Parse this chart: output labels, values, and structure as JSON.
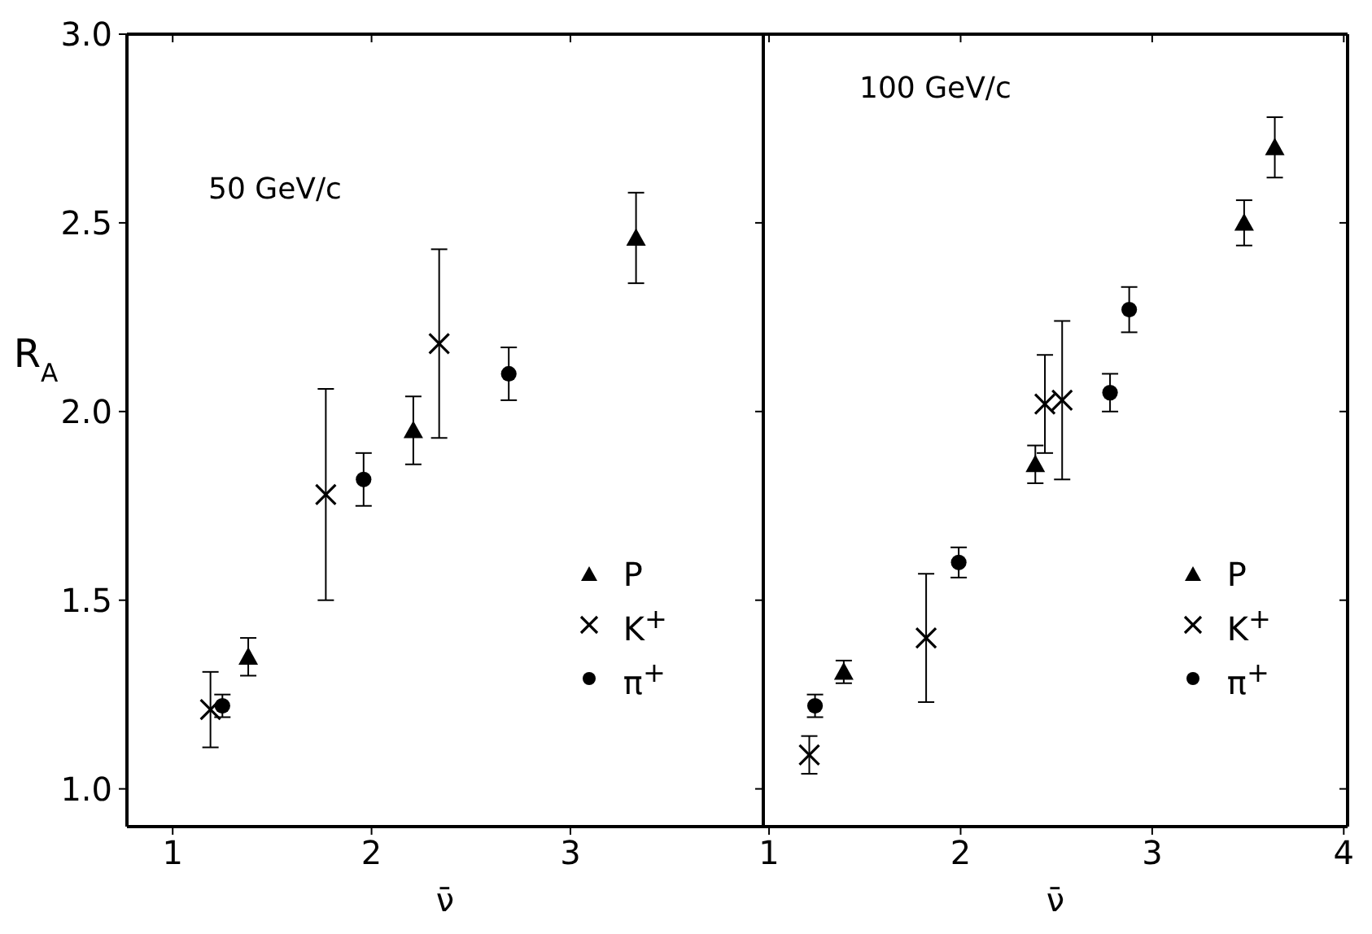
{
  "chart_data": [
    {
      "type": "scatter",
      "annotations": [
        "50 GeV/c"
      ],
      "xlabel": "ν̄",
      "ylabel": "R$_{A}$",
      "xlim": [
        0.77,
        3.97
      ],
      "xticks": [
        1,
        2,
        3
      ],
      "ylim": [
        0.9,
        3.0
      ],
      "yticks": [
        {
          "value": 1,
          "label": "1.0"
        },
        {
          "value": 1.5,
          "label": "1.5"
        },
        {
          "value": 2,
          "label": "2.0"
        },
        {
          "value": 2.5,
          "label": "2.5"
        },
        {
          "value": 3,
          "label": "3.0"
        }
      ],
      "legend": "bottom right",
      "series": [
        {
          "name": "P",
          "color": "#000000",
          "marker": "triangle",
          "x": [
            1.38,
            2.21,
            3.33
          ],
          "values": [
            1.35,
            1.95,
            2.46
          ],
          "errors": [
            0.05,
            0.09,
            0.12
          ]
        },
        {
          "name": "K$^{+}$",
          "color": "#000000",
          "marker": "cross",
          "x": [
            1.19,
            1.77,
            2.34
          ],
          "values": [
            1.21,
            1.78,
            2.18
          ],
          "errors": [
            0.1,
            0.28,
            0.25
          ]
        },
        {
          "name": "π$^{+}$",
          "color": "#000000",
          "marker": "circle",
          "x": [
            1.25,
            1.96,
            2.69
          ],
          "values": [
            1.22,
            1.82,
            2.1
          ],
          "errors": [
            0.03,
            0.07,
            0.07
          ]
        }
      ]
    },
    {
      "type": "scatter",
      "annotations": [
        "100 GeV/c"
      ],
      "xlabel": "ν̄",
      "xlim": [
        0.97,
        4.02
      ],
      "xticks": [
        1,
        2,
        3,
        4
      ],
      "ylim": [
        0.9,
        3.0
      ],
      "yticks": [
        1,
        1.5,
        2,
        2.5,
        3
      ],
      "tick_labels": "x",
      "legend": "bottom right",
      "series": [
        {
          "name": "P",
          "color": "#000000",
          "marker": "triangle",
          "x": [
            1.39,
            2.39,
            3.48,
            3.64
          ],
          "values": [
            1.31,
            1.86,
            2.5,
            2.7
          ],
          "errors": [
            0.03,
            0.05,
            0.06,
            0.08
          ]
        },
        {
          "name": "K$^{+}$",
          "color": "#000000",
          "marker": "cross",
          "x": [
            1.21,
            1.82,
            2.44,
            2.53
          ],
          "values": [
            1.09,
            1.4,
            2.02,
            2.03
          ],
          "errors": [
            0.05,
            0.17,
            0.13,
            0.21
          ]
        },
        {
          "name": "π$^{+}$",
          "color": "#000000",
          "marker": "circle",
          "x": [
            1.24,
            1.99,
            2.78,
            2.88
          ],
          "values": [
            1.22,
            1.6,
            2.05,
            2.27
          ],
          "errors": [
            0.03,
            0.04,
            0.05,
            0.06
          ]
        }
      ]
    }
  ]
}
